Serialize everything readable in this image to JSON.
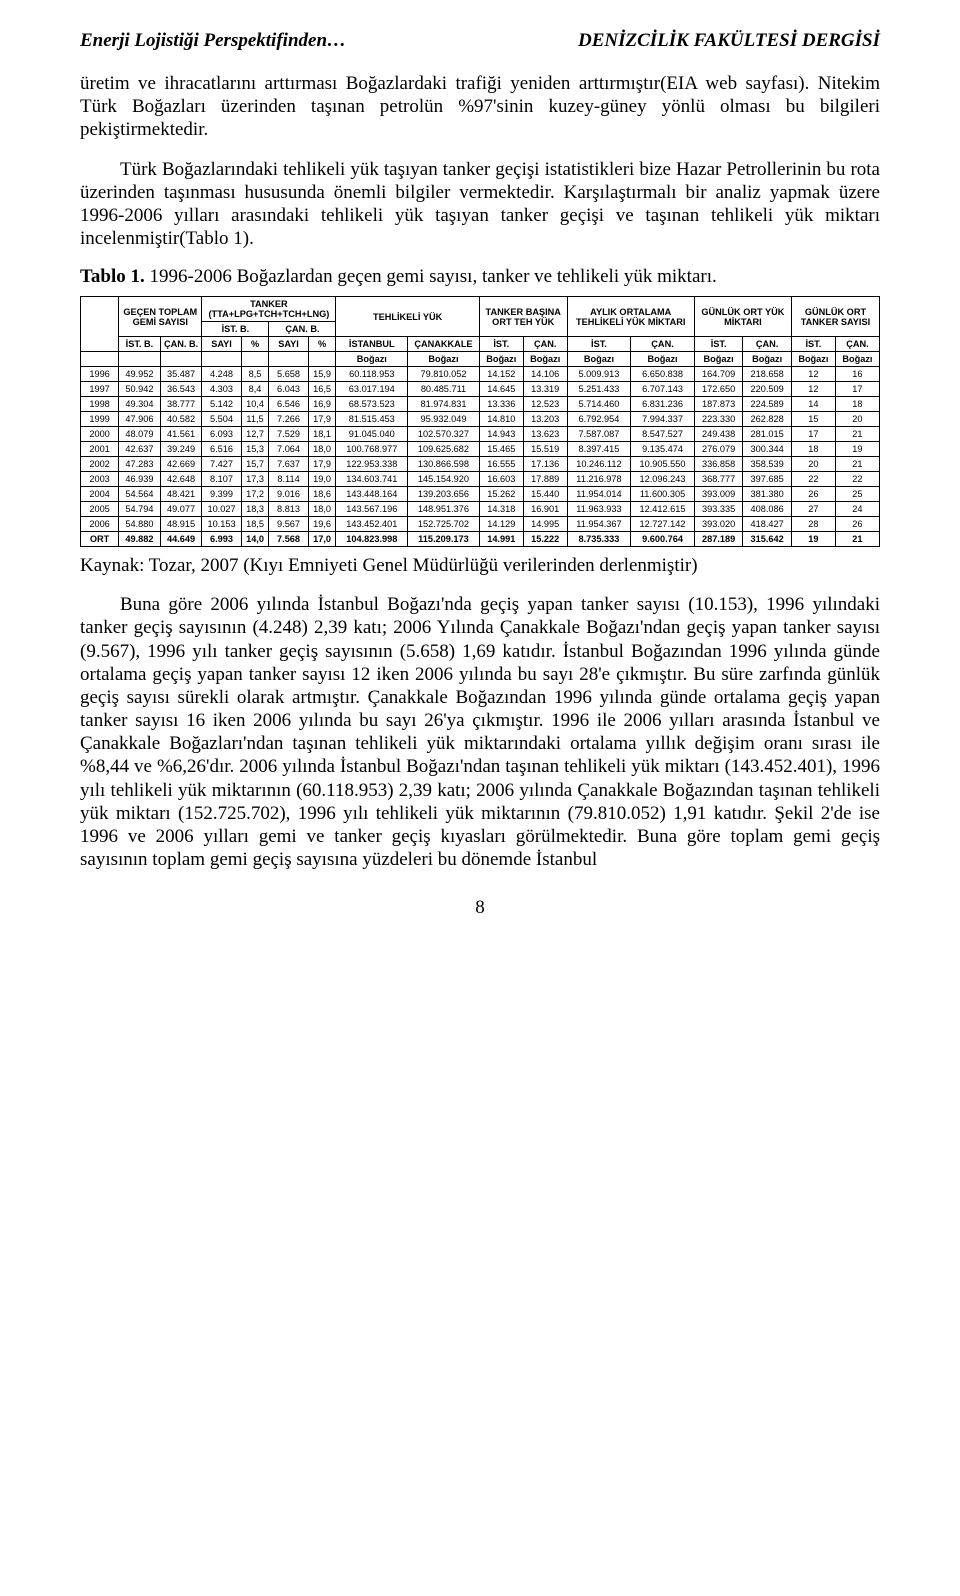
{
  "header": {
    "left": "Enerji Lojistiği Perspektifinden…",
    "right": "DENİZCİLİK FAKÜLTESİ DERGİSİ"
  },
  "p1": "üretim ve ihracatlarını arttırması Boğazlardaki trafiği yeniden arttırmıştır(EIA web sayfası). Nitekim Türk Boğazları üzerinden taşınan petrolün %97'sinin kuzey-güney yönlü olması bu bilgileri pekiştirmektedir.",
  "p2": "Türk Boğazlarındaki tehlikeli yük taşıyan tanker geçişi istatistikleri bize Hazar Petrollerinin bu rota üzerinden taşınması hususunda önemli bilgiler vermektedir. Karşılaştırmalı bir analiz yapmak üzere 1996-2006 yılları arasındaki tehlikeli yük taşıyan tanker geçişi ve taşınan tehlikeli yük miktarı incelenmiştir(Tablo 1).",
  "tablo_label_bold": "Tablo 1.",
  "tablo_label_rest": " 1996-2006 Boğazlardan geçen gemi sayısı, tanker ve tehlikeli yük miktarı.",
  "kaynak": "Kaynak: Tozar, 2007 (Kıyı Emniyeti Genel Müdürlüğü verilerinden derlenmiştir)",
  "p3": "Buna göre 2006 yılında İstanbul Boğazı'nda geçiş yapan tanker sayısı (10.153), 1996 yılındaki tanker geçiş sayısının (4.248) 2,39 katı; 2006 Yılında Çanakkale Boğazı'ndan geçiş yapan tanker sayısı (9.567), 1996 yılı tanker geçiş sayısının (5.658) 1,69 katıdır. İstanbul Boğazından 1996 yılında günde ortalama geçiş yapan tanker sayısı 12 iken 2006 yılında bu sayı 28'e çıkmıştır. Bu süre zarfında günlük geçiş sayısı sürekli olarak artmıştır. Çanakkale Boğazından 1996 yılında günde ortalama geçiş yapan tanker sayısı 16 iken 2006 yılında bu sayı 26'ya çıkmıştır. 1996 ile 2006 yılları arasında İstanbul ve Çanakkale Boğazları'ndan taşınan tehlikeli yük miktarındaki ortalama yıllık değişim oranı sırası ile %8,44 ve %6,26'dır. 2006 yılında İstanbul Boğazı'ndan taşınan tehlikeli yük miktarı (143.452.401), 1996 yılı tehlikeli yük miktarının (60.118.953) 2,39 katı; 2006 yılında Çanakkale Boğazından taşınan tehlikeli yük miktarı (152.725.702), 1996 yılı tehlikeli yük miktarının (79.810.052) 1,91 katıdır. Şekil 2'de ise 1996 ve 2006 yılları gemi ve tanker geçiş kıyasları görülmektedir. Buna göre toplam gemi geçiş sayısının toplam gemi geçiş sayısına yüzdeleri bu dönemde İstanbul",
  "pagenum": "8",
  "table": {
    "head_groups": {
      "gecen_toplam": "GEÇEN TOPLAM GEMİ SAYISI",
      "tanker_formula": "TANKER (TTA+LPG+TCH+TCH+LNG)",
      "tehlikeli_yuk": "TEHLİKELİ YÜK",
      "tanker_basina": "TANKER BAŞINA ORT TEH YÜK",
      "aylik_ort": "AYLIK ORTALAMA TEHLİKELİ YÜK MİKTARI",
      "gunluk_ort_yuk": "GÜNLÜK ORT YÜK MİKTARI",
      "gunluk_ort_tanker": "GÜNLÜK ORT TANKER SAYISI"
    },
    "sub1": {
      "istb": "İST. B.",
      "canb": "ÇAN. B.",
      "ist_b_grp": "İST. B.",
      "can_b_grp": "ÇAN. B.",
      "istanbul_full": "İSTANBUL",
      "canakkale_full": "ÇANAKKALE",
      "ist": "İST.",
      "can": "ÇAN."
    },
    "sub2": {
      "sayi": "SAYI",
      "pct": "%",
      "bogazi": "Boğazı"
    },
    "rows": [
      {
        "year": "1996",
        "c": [
          "49.952",
          "35.487",
          "4.248",
          "8,5",
          "5.658",
          "15,9",
          "60.118.953",
          "79.810.052",
          "14.152",
          "14.106",
          "5.009.913",
          "6.650.838",
          "164.709",
          "218.658",
          "12",
          "16"
        ]
      },
      {
        "year": "1997",
        "c": [
          "50.942",
          "36.543",
          "4.303",
          "8,4",
          "6.043",
          "16,5",
          "63.017.194",
          "80.485.711",
          "14.645",
          "13.319",
          "5.251.433",
          "6.707.143",
          "172.650",
          "220.509",
          "12",
          "17"
        ]
      },
      {
        "year": "1998",
        "c": [
          "49.304",
          "38.777",
          "5.142",
          "10,4",
          "6.546",
          "16,9",
          "68.573.523",
          "81.974.831",
          "13.336",
          "12.523",
          "5.714.460",
          "6.831.236",
          "187.873",
          "224.589",
          "14",
          "18"
        ]
      },
      {
        "year": "1999",
        "c": [
          "47.906",
          "40.582",
          "5.504",
          "11,5",
          "7.266",
          "17,9",
          "81.515.453",
          "95.932.049",
          "14.810",
          "13.203",
          "6.792.954",
          "7.994.337",
          "223.330",
          "262.828",
          "15",
          "20"
        ]
      },
      {
        "year": "2000",
        "c": [
          "48.079",
          "41.561",
          "6.093",
          "12,7",
          "7.529",
          "18,1",
          "91.045.040",
          "102.570.327",
          "14.943",
          "13.623",
          "7.587.087",
          "8.547.527",
          "249.438",
          "281.015",
          "17",
          "21"
        ]
      },
      {
        "year": "2001",
        "c": [
          "42.637",
          "39.249",
          "6.516",
          "15,3",
          "7.064",
          "18,0",
          "100.768.977",
          "109.625.682",
          "15.465",
          "15.519",
          "8.397.415",
          "9.135.474",
          "276.079",
          "300.344",
          "18",
          "19"
        ]
      },
      {
        "year": "2002",
        "c": [
          "47.283",
          "42.669",
          "7.427",
          "15,7",
          "7.637",
          "17,9",
          "122.953.338",
          "130.866.598",
          "16.555",
          "17.136",
          "10.246.112",
          "10.905.550",
          "336.858",
          "358.539",
          "20",
          "21"
        ]
      },
      {
        "year": "2003",
        "c": [
          "46.939",
          "42.648",
          "8.107",
          "17,3",
          "8.114",
          "19,0",
          "134.603.741",
          "145.154.920",
          "16.603",
          "17.889",
          "11.216.978",
          "12.096.243",
          "368.777",
          "397.685",
          "22",
          "22"
        ]
      },
      {
        "year": "2004",
        "c": [
          "54.564",
          "48.421",
          "9.399",
          "17,2",
          "9.016",
          "18,6",
          "143.448.164",
          "139.203.656",
          "15.262",
          "15.440",
          "11.954.014",
          "11.600.305",
          "393.009",
          "381.380",
          "26",
          "25"
        ]
      },
      {
        "year": "2005",
        "c": [
          "54.794",
          "49.077",
          "10.027",
          "18,3",
          "8.813",
          "18,0",
          "143.567.196",
          "148.951.376",
          "14.318",
          "16.901",
          "11.963.933",
          "12.412.615",
          "393.335",
          "408.086",
          "27",
          "24"
        ]
      },
      {
        "year": "2006",
        "c": [
          "54.880",
          "48.915",
          "10.153",
          "18,5",
          "9.567",
          "19,6",
          "143.452.401",
          "152.725.702",
          "14.129",
          "14.995",
          "11.954.367",
          "12.727.142",
          "393.020",
          "418.427",
          "28",
          "26"
        ]
      },
      {
        "year": "ORT",
        "c": [
          "49.882",
          "44.649",
          "6.993",
          "14,0",
          "7.568",
          "17,0",
          "104.823.998",
          "115.209.173",
          "14.991",
          "15.222",
          "8.735.333",
          "9.600.764",
          "287.189",
          "315.642",
          "19",
          "21"
        ],
        "bold": true
      }
    ]
  }
}
